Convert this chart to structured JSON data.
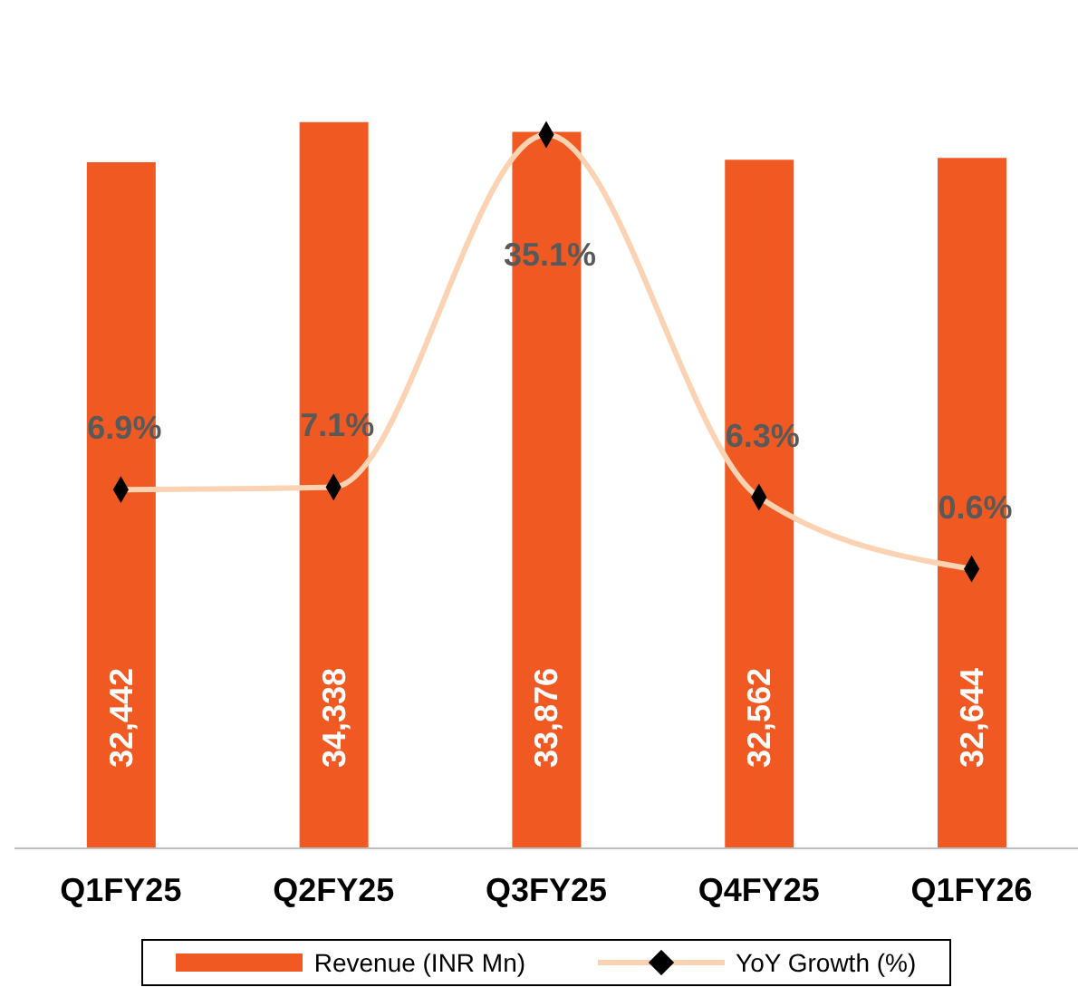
{
  "chart_data": {
    "type": "bar",
    "categories": [
      "Q1FY25",
      "Q2FY25",
      "Q3FY25",
      "Q4FY25",
      "Q1FY26"
    ],
    "series": [
      {
        "name": "Revenue (INR Mn)",
        "color": "#f05a22",
        "values": [
          32442,
          34338,
          33876,
          32562,
          32644
        ],
        "value_labels": [
          "32,442",
          "34,338",
          "33,876",
          "32,562",
          "32,644"
        ]
      },
      {
        "name": "YoY Growth (%)",
        "type": "line",
        "axis": "y2",
        "color": "#fbd3b3",
        "marker": "diamond",
        "values": [
          6.9,
          7.1,
          35.1,
          6.3,
          0.6
        ],
        "value_labels": [
          "6.9%",
          "7.1%",
          "35.1%",
          "6.3%",
          "0.6%"
        ]
      }
    ],
    "tick_labels": "x",
    "legend": "bottom"
  }
}
